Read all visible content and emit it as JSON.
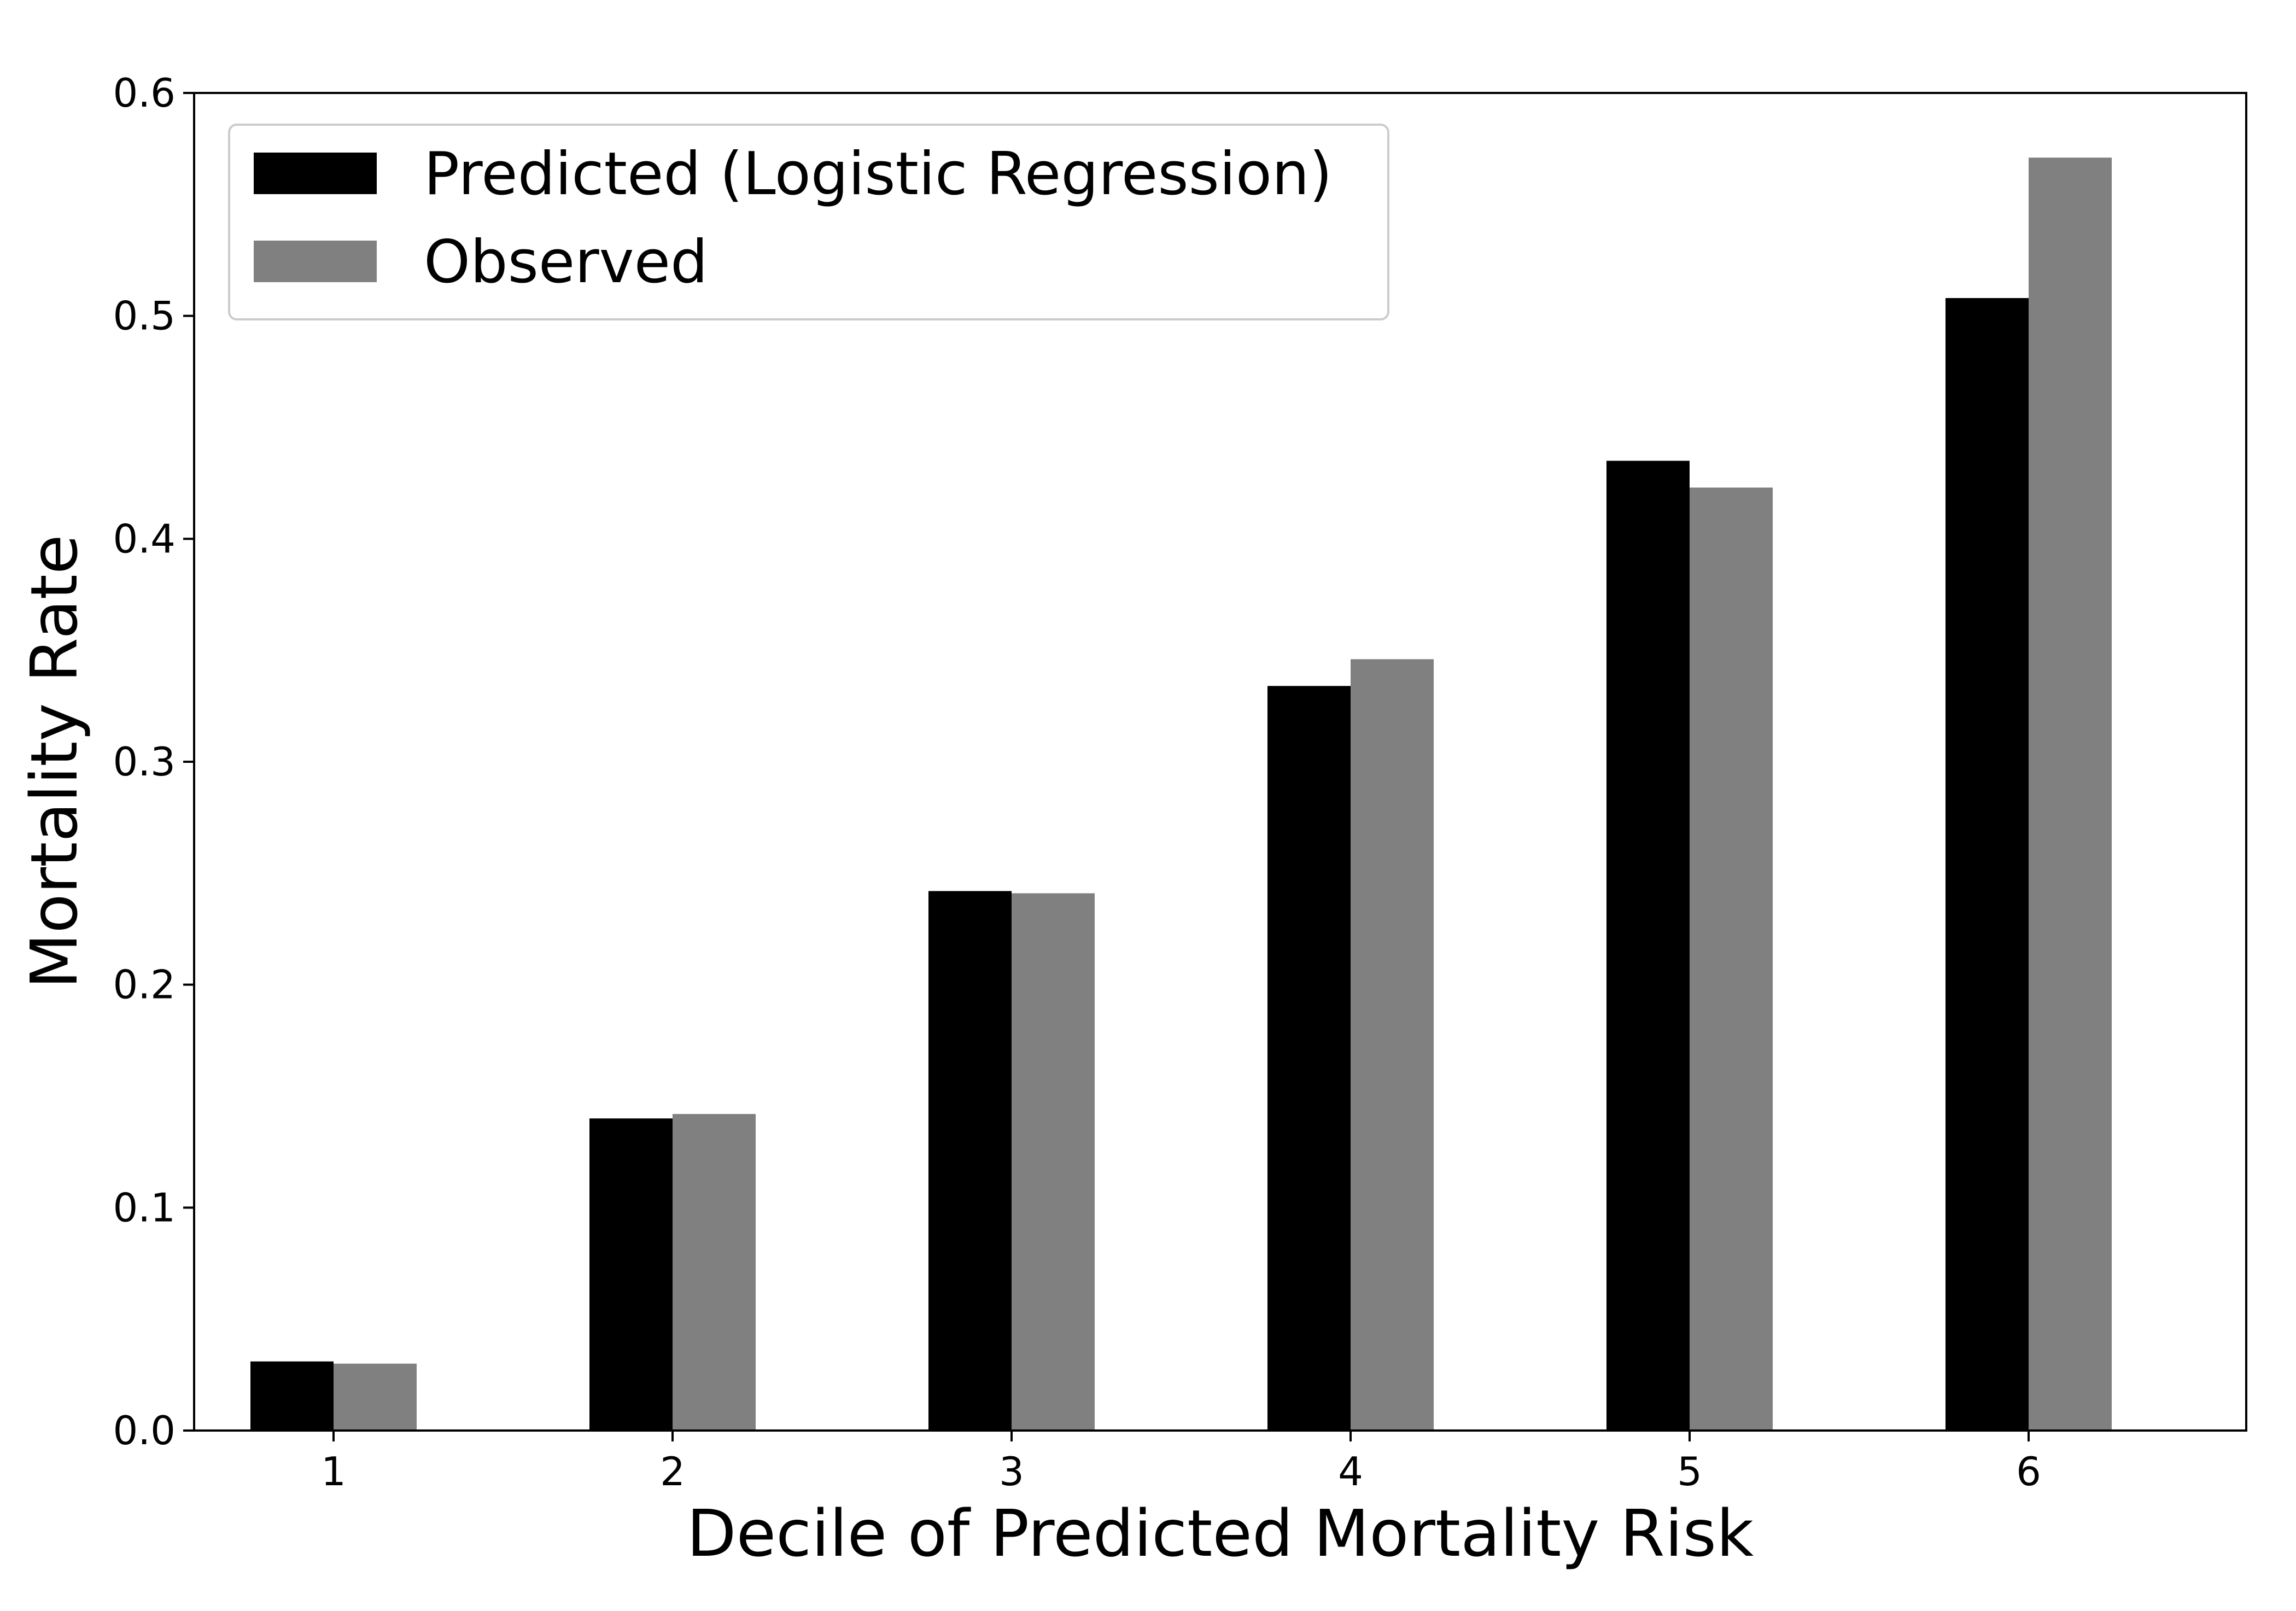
{
  "chart_data": {
    "type": "bar",
    "categories": [
      "1",
      "2",
      "3",
      "4",
      "5",
      "6"
    ],
    "series": [
      {
        "name": "Predicted (Logistic Regression)",
        "color": "#000000",
        "values": [
          0.031,
          0.14,
          0.242,
          0.334,
          0.435,
          0.508
        ]
      },
      {
        "name": "Observed",
        "color": "#808080",
        "values": [
          0.03,
          0.142,
          0.241,
          0.346,
          0.423,
          0.571
        ]
      }
    ],
    "xlabel": "Decile of Predicted Mortality Risk",
    "ylabel": "Mortality Rate",
    "ylim": [
      0,
      0.6
    ],
    "yticks": [
      "0.0",
      "0.1",
      "0.2",
      "0.3",
      "0.4",
      "0.5",
      "0.6"
    ],
    "grid": false,
    "legend_position": "top-left"
  }
}
